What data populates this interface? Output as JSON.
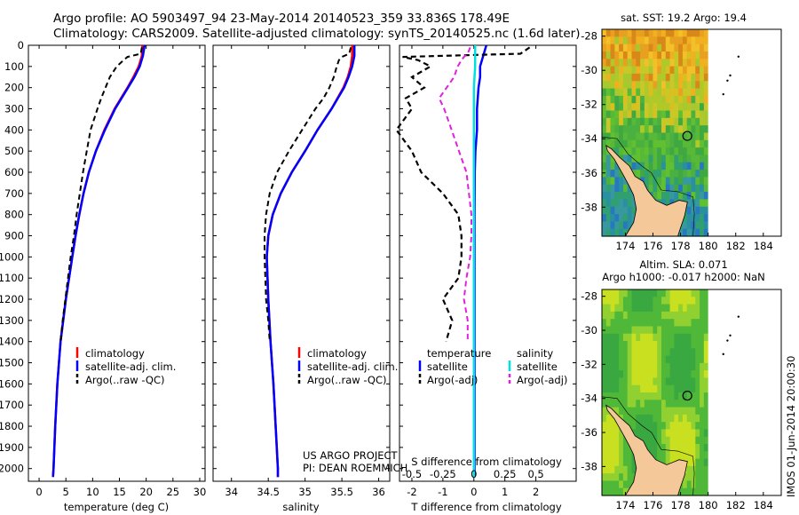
{
  "header": {
    "line1": "Argo profile: AO 5903497_94 23-May-2014 20140523_359 33.836S 178.49E",
    "line2": "Climatology: CARS2009. Satellite-adjusted climatology: synTS_20140525.nc (1.6d later)"
  },
  "credit": {
    "line1": "US ARGO PROJECT",
    "line2": "PI: DEAN ROEMMICH"
  },
  "watermark": "IMOS 01-Jun-2014 20:00:30",
  "colors": {
    "climatology": "#ff0000",
    "satellite": "#0000ff",
    "argo": "#000000",
    "sal_satellite": "#00e0e0",
    "sal_argo": "#e020e0"
  },
  "chart_data": [
    {
      "type": "line",
      "xlabel": "temperature (deg C)",
      "xlim": [
        -2,
        31
      ],
      "ylim": [
        2060,
        0
      ],
      "xticks": [
        0,
        5,
        10,
        15,
        20,
        25,
        30
      ],
      "yticks": [
        0,
        100,
        200,
        300,
        400,
        500,
        600,
        700,
        800,
        900,
        1000,
        1100,
        1200,
        1300,
        1400,
        1500,
        1600,
        1700,
        1800,
        1900,
        2000
      ],
      "legend": [
        "climatology",
        "satellite-adj. clim.",
        "Argo(..raw -QC)"
      ],
      "series": [
        {
          "name": "climatology",
          "depth": [
            0,
            50,
            100,
            150,
            200,
            300,
            400,
            500,
            600,
            700,
            800,
            900,
            1000,
            1200,
            1400,
            1600,
            1800,
            2000,
            2040
          ],
          "values": [
            19.3,
            19.2,
            18.6,
            17.6,
            16.5,
            14.1,
            12.2,
            10.6,
            9.3,
            8.3,
            7.5,
            6.8,
            6.2,
            5.0,
            4.0,
            3.4,
            3.0,
            2.7,
            2.6
          ]
        },
        {
          "name": "satellite-adj. clim.",
          "depth": [
            0,
            50,
            100,
            150,
            200,
            300,
            400,
            500,
            600,
            700,
            800,
            900,
            1000,
            1200,
            1400,
            1600,
            1800,
            2000,
            2040
          ],
          "values": [
            19.7,
            19.4,
            18.8,
            17.8,
            16.6,
            14.2,
            12.3,
            10.6,
            9.3,
            8.3,
            7.5,
            6.8,
            6.2,
            5.0,
            4.0,
            3.4,
            3.0,
            2.7,
            2.6
          ]
        },
        {
          "name": "Argo(..raw -QC)",
          "depth": [
            10,
            40,
            55,
            70,
            100,
            150,
            200,
            250,
            300,
            400,
            500,
            600,
            700,
            800,
            900,
            1000,
            1100,
            1200,
            1300,
            1400
          ],
          "values": [
            19.2,
            19.0,
            16.5,
            15.8,
            14.5,
            13.2,
            12.4,
            11.6,
            10.9,
            9.6,
            8.9,
            8.2,
            7.6,
            7.0,
            6.5,
            5.9,
            5.4,
            4.9,
            4.4,
            4.0
          ]
        }
      ]
    },
    {
      "type": "line",
      "xlabel": "salinity",
      "xlim": [
        33.75,
        36.15
      ],
      "ylim": [
        2060,
        0
      ],
      "xticks": [
        34,
        34.5,
        35,
        35.5,
        36
      ],
      "legend": [
        "climatology",
        "satellite-adj. clim.",
        "Argo(..raw -QC)"
      ],
      "series": [
        {
          "name": "climatology",
          "depth": [
            0,
            50,
            100,
            150,
            200,
            300,
            400,
            500,
            600,
            700,
            800,
            900,
            1000,
            1200,
            1400,
            1600,
            1800,
            2000,
            2040
          ],
          "values": [
            35.64,
            35.64,
            35.62,
            35.58,
            35.52,
            35.36,
            35.17,
            35.0,
            34.82,
            34.67,
            34.56,
            34.5,
            34.48,
            34.5,
            34.53,
            34.57,
            34.6,
            34.63,
            34.63
          ]
        },
        {
          "name": "satellite-adj. clim.",
          "depth": [
            0,
            50,
            100,
            150,
            200,
            300,
            400,
            500,
            600,
            700,
            800,
            900,
            1000,
            1200,
            1400,
            1600,
            1800,
            2000,
            2040
          ],
          "values": [
            35.67,
            35.67,
            35.64,
            35.59,
            35.53,
            35.36,
            35.17,
            35.0,
            34.82,
            34.67,
            34.56,
            34.5,
            34.48,
            34.5,
            34.53,
            34.57,
            34.6,
            34.63,
            34.63
          ]
        },
        {
          "name": "Argo(..raw -QC)",
          "depth": [
            10,
            40,
            55,
            70,
            100,
            150,
            200,
            250,
            300,
            400,
            500,
            600,
            700,
            800,
            900,
            1000,
            1100,
            1200,
            1300,
            1400
          ],
          "values": [
            35.62,
            35.6,
            35.5,
            35.46,
            35.43,
            35.39,
            35.33,
            35.25,
            35.14,
            34.96,
            34.78,
            34.62,
            34.52,
            34.47,
            34.45,
            34.45,
            34.46,
            34.47,
            34.5,
            34.52
          ]
        }
      ]
    },
    {
      "type": "line",
      "xlabel": "T difference from climatology",
      "xlabel_top": "S difference from climatology",
      "xlim": [
        -2.4,
        3.3
      ],
      "ylim": [
        2060,
        0
      ],
      "xticks": [
        -2,
        -1,
        0,
        1,
        2
      ],
      "xticks_top": [
        "-0.5",
        "-0.25",
        "0",
        "0.25",
        "0.5"
      ],
      "legend_headers": [
        "temperature",
        "salinity"
      ],
      "legend": [
        "satellite",
        "Argo(-adj)",
        "satellite",
        "Argo(-adj)"
      ],
      "series": [
        {
          "name": "temperature satellite",
          "depth": [
            0,
            50,
            100,
            150,
            200,
            300,
            400,
            500,
            600,
            800,
            1000,
            1200,
            1400,
            1600,
            1800,
            2000,
            2040
          ],
          "values": [
            0.4,
            0.3,
            0.2,
            0.2,
            0.15,
            0.1,
            0.1,
            0.05,
            0.03,
            0.02,
            0.02,
            0.02,
            0.02,
            0.02,
            0.02,
            0.02,
            0.02
          ]
        },
        {
          "name": "temperature Argo(-adj)",
          "depth": [
            10,
            40,
            55,
            70,
            100,
            150,
            200,
            250,
            300,
            400,
            500,
            600,
            700,
            800,
            900,
            1000,
            1100,
            1200,
            1300,
            1400
          ],
          "values": [
            1.8,
            1.5,
            -2.3,
            -1.8,
            -1.4,
            -2.0,
            -1.6,
            -2.2,
            -2.0,
            -2.5,
            -2.0,
            -1.7,
            -1.0,
            -0.5,
            -0.4,
            -0.4,
            -0.5,
            -1.0,
            -0.7,
            -0.9
          ]
        },
        {
          "name": "salinity satellite",
          "depth": [
            0,
            100,
            200,
            400,
            600,
            800,
            1000,
            1500,
            2000,
            2040
          ],
          "values": [
            0.01,
            0.01,
            0.0,
            0.0,
            0.0,
            0.0,
            0.0,
            0.0,
            0.0,
            0.0
          ]
        },
        {
          "name": "salinity Argo(-adj)",
          "depth": [
            10,
            40,
            55,
            70,
            100,
            150,
            200,
            250,
            300,
            400,
            500,
            600,
            700,
            800,
            900,
            1000,
            1100,
            1200,
            1300,
            1400
          ],
          "values": [
            -0.03,
            -0.05,
            -0.08,
            -0.1,
            -0.13,
            -0.16,
            -0.22,
            -0.28,
            -0.24,
            -0.18,
            -0.12,
            -0.06,
            -0.04,
            -0.02,
            -0.02,
            -0.03,
            -0.06,
            -0.08,
            -0.05,
            -0.05
          ]
        }
      ]
    },
    {
      "type": "heatmap",
      "title": "sat. SST: 19.2  Argo: 19.4",
      "xticks": [
        174,
        176,
        178,
        180,
        182,
        184
      ],
      "yticks": [
        -28,
        -30,
        -32,
        -34,
        -36,
        -38
      ],
      "argo_location": [
        178.49,
        -33.836
      ]
    },
    {
      "type": "heatmap",
      "title_line1": "Altim. SLA: 0.071",
      "title_line2": "Argo h1000: -0.017  h2000: NaN",
      "xticks": [
        174,
        176,
        178,
        180,
        182,
        184
      ],
      "yticks": [
        -28,
        -30,
        -32,
        -34,
        -36,
        -38
      ],
      "argo_location": [
        178.49,
        -33.836
      ]
    }
  ]
}
